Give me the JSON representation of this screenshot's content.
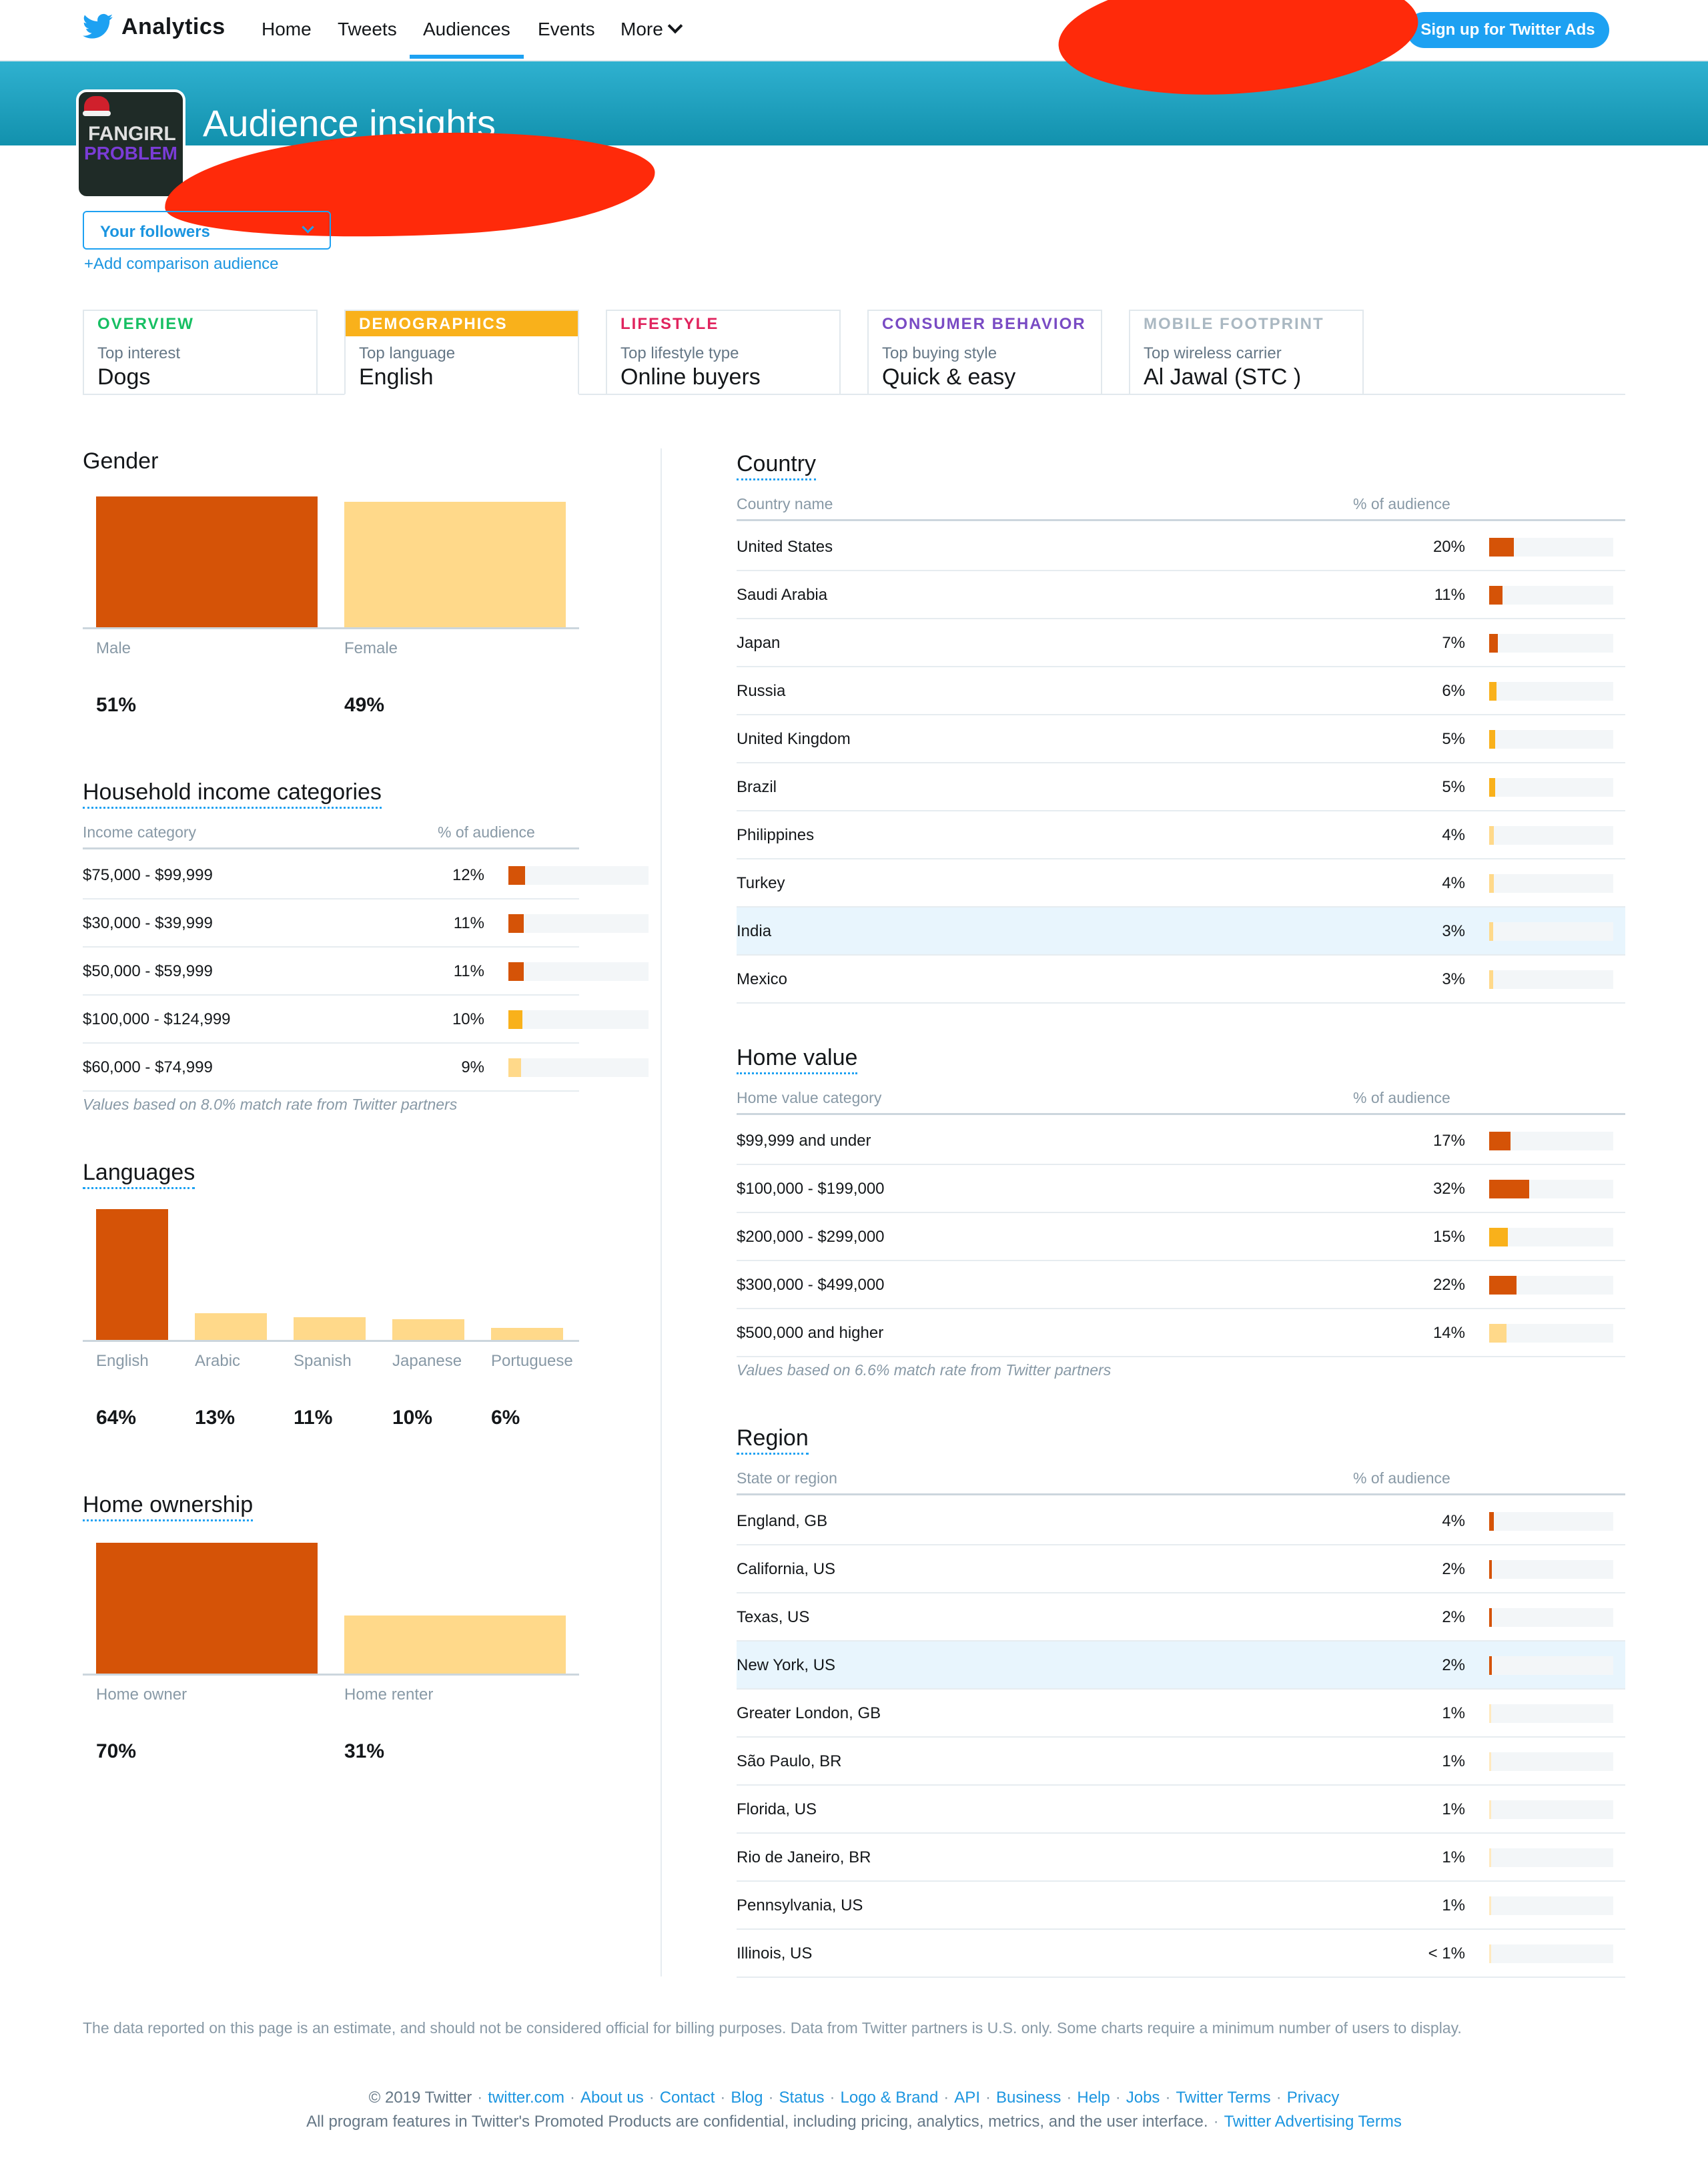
{
  "nav": {
    "brand": "Analytics",
    "links": [
      "Home",
      "Tweets",
      "Audiences",
      "Events",
      "More"
    ],
    "active": "Audiences",
    "signup": "Sign up for Twitter Ads"
  },
  "header": {
    "title": "Audience insights",
    "avatar_text_1": "FANGIRL",
    "avatar_text_2": "PROBLEM"
  },
  "audience": {
    "select_value": "Your followers",
    "add_comparison": "+Add comparison audience"
  },
  "tabs": [
    {
      "head": "OVERVIEW",
      "sub": "Top interest",
      "value": "Dogs",
      "color": "#17bf63"
    },
    {
      "head": "DEMOGRAPHICS",
      "sub": "Top language",
      "value": "English",
      "color": "#f9b11b"
    },
    {
      "head": "LIFESTYLE",
      "sub": "Top lifestyle type",
      "value": "Online buyers",
      "color": "#e0245e"
    },
    {
      "head": "CONSUMER BEHAVIOR",
      "sub": "Top buying style",
      "value": "Quick & easy",
      "color": "#794bc4"
    },
    {
      "head": "MOBILE FOOTPRINT",
      "sub": "Top wireless carrier",
      "value": "Al Jawal (STC )",
      "color": "#aab8c2"
    }
  ],
  "colors": {
    "dark": "#d55307",
    "mid": "#f9b11b",
    "light": "#ffd98a",
    "lightest": "#ffe9bf",
    "accent": "#1da1f2"
  },
  "gender": {
    "title": "Gender",
    "items": [
      {
        "label": "Male",
        "pct": "51%",
        "value": 51
      },
      {
        "label": "Female",
        "pct": "49%",
        "value": 49
      }
    ]
  },
  "income": {
    "title": "Household income categories",
    "col1": "Income category",
    "col2": "% of audience",
    "rows": [
      {
        "label": "$75,000 - $99,999",
        "pct": "12%",
        "value": 12
      },
      {
        "label": "$30,000 - $39,999",
        "pct": "11%",
        "value": 11
      },
      {
        "label": "$50,000 - $59,999",
        "pct": "11%",
        "value": 11
      },
      {
        "label": "$100,000 - $124,999",
        "pct": "10%",
        "value": 10
      },
      {
        "label": "$60,000 - $74,999",
        "pct": "9%",
        "value": 9
      }
    ],
    "note": "Values based on 8.0% match rate from Twitter partners"
  },
  "languages": {
    "title": "Languages",
    "items": [
      {
        "label": "English",
        "pct": "64%",
        "value": 64
      },
      {
        "label": "Arabic",
        "pct": "13%",
        "value": 13
      },
      {
        "label": "Spanish",
        "pct": "11%",
        "value": 11
      },
      {
        "label": "Japanese",
        "pct": "10%",
        "value": 10
      },
      {
        "label": "Portuguese",
        "pct": "6%",
        "value": 6
      }
    ]
  },
  "ownership": {
    "title": "Home ownership",
    "items": [
      {
        "label": "Home owner",
        "pct": "70%",
        "value": 70
      },
      {
        "label": "Home renter",
        "pct": "31%",
        "value": 31
      }
    ]
  },
  "country": {
    "title": "Country",
    "col1": "Country name",
    "col2": "% of audience",
    "rows": [
      {
        "label": "United States",
        "pct": "20%",
        "value": 20
      },
      {
        "label": "Saudi Arabia",
        "pct": "11%",
        "value": 11
      },
      {
        "label": "Japan",
        "pct": "7%",
        "value": 7
      },
      {
        "label": "Russia",
        "pct": "6%",
        "value": 6
      },
      {
        "label": "United Kingdom",
        "pct": "5%",
        "value": 5
      },
      {
        "label": "Brazil",
        "pct": "5%",
        "value": 5
      },
      {
        "label": "Philippines",
        "pct": "4%",
        "value": 4
      },
      {
        "label": "Turkey",
        "pct": "4%",
        "value": 4
      },
      {
        "label": "India",
        "pct": "3%",
        "value": 3,
        "highlight": true
      },
      {
        "label": "Mexico",
        "pct": "3%",
        "value": 3
      }
    ]
  },
  "homevalue": {
    "title": "Home value",
    "col1": "Home value category",
    "col2": "% of audience",
    "rows": [
      {
        "label": "$99,999 and under",
        "pct": "17%",
        "value": 17
      },
      {
        "label": "$100,000 - $199,000",
        "pct": "32%",
        "value": 32
      },
      {
        "label": "$200,000 - $299,000",
        "pct": "15%",
        "value": 15
      },
      {
        "label": "$300,000 - $499,000",
        "pct": "22%",
        "value": 22
      },
      {
        "label": "$500,000 and higher",
        "pct": "14%",
        "value": 14
      }
    ],
    "note": "Values based on 6.6% match rate from Twitter partners"
  },
  "region": {
    "title": "Region",
    "col1": "State or region",
    "col2": "% of audience",
    "rows": [
      {
        "label": "England, GB",
        "pct": "4%",
        "value": 4
      },
      {
        "label": "California, US",
        "pct": "2%",
        "value": 2
      },
      {
        "label": "Texas, US",
        "pct": "2%",
        "value": 2
      },
      {
        "label": "New York, US",
        "pct": "2%",
        "value": 2,
        "highlight": true
      },
      {
        "label": "Greater London, GB",
        "pct": "1%",
        "value": 1
      },
      {
        "label": "São Paulo, BR",
        "pct": "1%",
        "value": 1
      },
      {
        "label": "Florida, US",
        "pct": "1%",
        "value": 1
      },
      {
        "label": "Rio de Janeiro, BR",
        "pct": "1%",
        "value": 1
      },
      {
        "label": "Pennsylvania, US",
        "pct": "1%",
        "value": 1
      },
      {
        "label": "Illinois, US",
        "pct": "< 1%",
        "value": 0.5
      }
    ]
  },
  "disclaimer": "The data reported on this page is an estimate, and should not be considered official for billing purposes. Data from Twitter partners is U.S. only. Some charts require a minimum number of users to display.",
  "footer": {
    "copyright": "© 2019 Twitter",
    "links": [
      "twitter.com",
      "About us",
      "Contact",
      "Blog",
      "Status",
      "Logo & Brand",
      "API",
      "Business",
      "Help",
      "Jobs",
      "Twitter Terms",
      "Privacy"
    ],
    "line2": "All program features in Twitter's Promoted Products are confidential, including pricing, analytics, metrics, and the user interface.",
    "line2_link": "Twitter Advertising Terms"
  }
}
